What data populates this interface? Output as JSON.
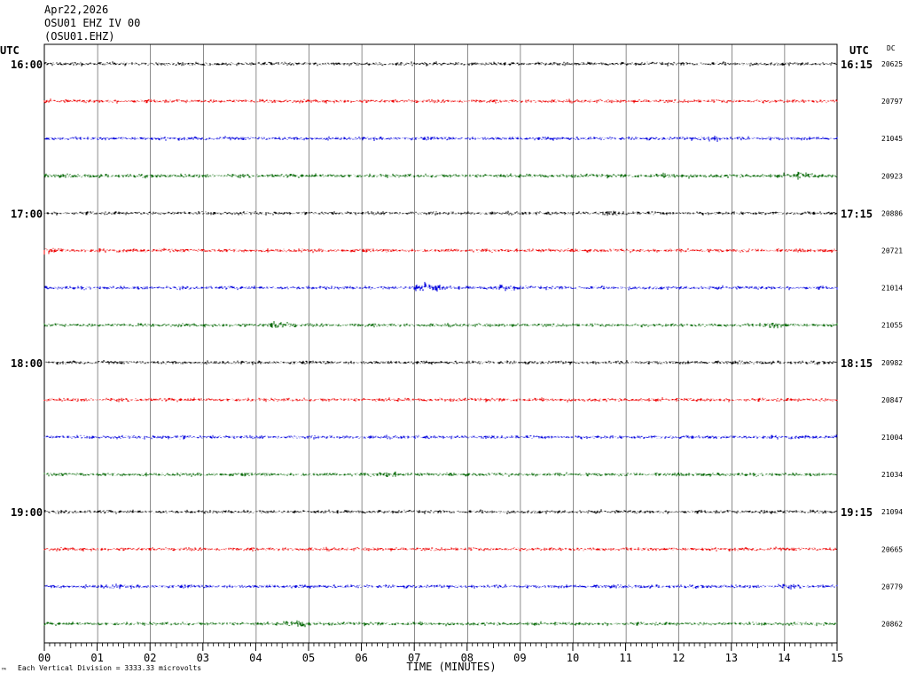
{
  "header": {
    "date": "Apr22,2026",
    "station": "OSU01 EHZ IV 00",
    "channel": "(OSU01.EHZ)"
  },
  "labels": {
    "utc_left": "UTC",
    "utc_right": "UTC",
    "dc": "DC",
    "xlabel": "TIME (MINUTES)",
    "footnote": "Each Vertical Division = 3333.33 microvolts",
    "corner": "™"
  },
  "chart_data": {
    "type": "line",
    "x_range": [
      0,
      15
    ],
    "x_ticks": [
      "00",
      "01",
      "02",
      "03",
      "04",
      "05",
      "06",
      "07",
      "08",
      "09",
      "10",
      "11",
      "12",
      "13",
      "14",
      "15"
    ],
    "xlabel": "TIME (MINUTES)",
    "grid": true,
    "trace_colors": [
      "#000000",
      "#ee0000",
      "#0000dd",
      "#006600"
    ],
    "left_times": [
      "16:00",
      "17:00",
      "18:00",
      "19:00"
    ],
    "right_times": [
      "16:15",
      "17:15",
      "18:15",
      "19:15"
    ],
    "rows": [
      {
        "dc": "20625",
        "amp": 1.0,
        "events": []
      },
      {
        "dc": "20797",
        "amp": 1.0,
        "events": []
      },
      {
        "dc": "21045",
        "amp": 1.0,
        "events": [
          {
            "t": 12.6,
            "a": 2.0
          }
        ]
      },
      {
        "dc": "20923",
        "amp": 1.1,
        "events": [
          {
            "t": 14.3,
            "a": 2.2
          },
          {
            "t": 11.9,
            "a": 1.5
          }
        ]
      },
      {
        "dc": "20886",
        "amp": 1.0,
        "events": [
          {
            "t": 10.7,
            "a": 1.5
          }
        ]
      },
      {
        "dc": "20721",
        "amp": 1.0,
        "events": [
          {
            "t": 0.05,
            "a": 2.5
          }
        ]
      },
      {
        "dc": "21014",
        "amp": 1.0,
        "events": [
          {
            "t": 7.25,
            "a": 4.0
          },
          {
            "t": 8.7,
            "a": 2.0
          }
        ]
      },
      {
        "dc": "21055",
        "amp": 1.0,
        "events": [
          {
            "t": 4.45,
            "a": 2.5
          },
          {
            "t": 13.8,
            "a": 2.0
          }
        ]
      },
      {
        "dc": "20982",
        "amp": 1.0,
        "events": []
      },
      {
        "dc": "20847",
        "amp": 1.0,
        "events": []
      },
      {
        "dc": "21004",
        "amp": 1.0,
        "events": [
          {
            "t": 2.5,
            "a": 1.5
          }
        ]
      },
      {
        "dc": "21034",
        "amp": 1.0,
        "events": [
          {
            "t": 6.5,
            "a": 2.0
          }
        ]
      },
      {
        "dc": "21094",
        "amp": 1.0,
        "events": [
          {
            "t": 13.8,
            "a": 1.5
          }
        ]
      },
      {
        "dc": "20665",
        "amp": 1.0,
        "events": []
      },
      {
        "dc": "20779",
        "amp": 1.0,
        "events": [
          {
            "t": 1.3,
            "a": 1.5
          },
          {
            "t": 14.0,
            "a": 1.5
          }
        ]
      },
      {
        "dc": "20862",
        "amp": 1.0,
        "events": [
          {
            "t": 4.8,
            "a": 2.5
          }
        ]
      }
    ]
  }
}
